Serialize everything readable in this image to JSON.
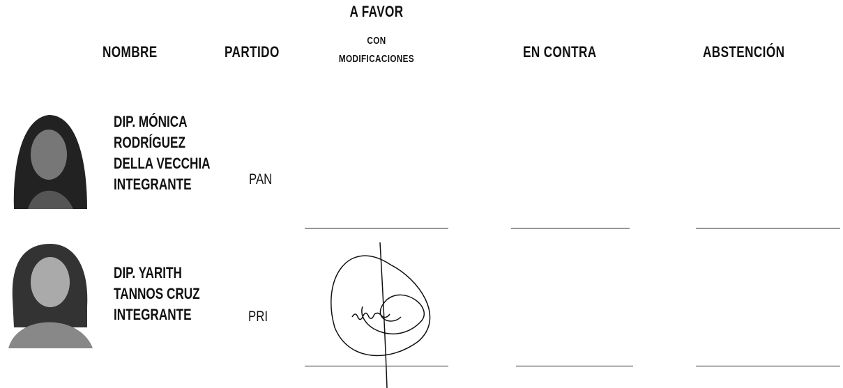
{
  "header": {
    "nombre": "NOMBRE",
    "partido": "PARTIDO",
    "a_favor": [
      "A FAVOR",
      "CON",
      "MODIFICACIONES"
    ],
    "en_contra": "EN CONTRA",
    "abstencion": "ABSTENCIÓN"
  },
  "members": [
    {
      "name_lines": [
        "DIP. MÓNICA",
        "RODRÍGUEZ",
        "DELLA VECCHIA",
        "INTEGRANTE"
      ],
      "party": "PAN"
    },
    {
      "name_lines": [
        "DIP. YARITH",
        "TANNOS CRUZ",
        "INTEGRANTE"
      ],
      "party": "PRI"
    }
  ]
}
